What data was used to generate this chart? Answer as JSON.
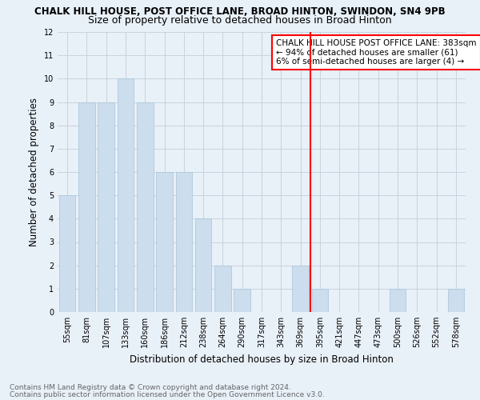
{
  "title": "CHALK HILL HOUSE, POST OFFICE LANE, BROAD HINTON, SWINDON, SN4 9PB",
  "subtitle": "Size of property relative to detached houses in Broad Hinton",
  "xlabel": "Distribution of detached houses by size in Broad Hinton",
  "ylabel": "Number of detached properties",
  "footer1": "Contains HM Land Registry data © Crown copyright and database right 2024.",
  "footer2": "Contains public sector information licensed under the Open Government Licence v3.0.",
  "categories": [
    "55sqm",
    "81sqm",
    "107sqm",
    "133sqm",
    "160sqm",
    "186sqm",
    "212sqm",
    "238sqm",
    "264sqm",
    "290sqm",
    "317sqm",
    "343sqm",
    "369sqm",
    "395sqm",
    "421sqm",
    "447sqm",
    "473sqm",
    "500sqm",
    "526sqm",
    "552sqm",
    "578sqm"
  ],
  "values": [
    5,
    9,
    9,
    10,
    9,
    6,
    6,
    4,
    2,
    1,
    0,
    0,
    2,
    1,
    0,
    0,
    0,
    1,
    0,
    0,
    1
  ],
  "bar_color": "#ccdded",
  "bar_edge_color": "#a8c4d8",
  "grid_color": "#c8d4de",
  "vline_color": "red",
  "annotation_title": "CHALK HILL HOUSE POST OFFICE LANE: 383sqm",
  "annotation_line1": "← 94% of detached houses are smaller (61)",
  "annotation_line2": "6% of semi-detached houses are larger (4) →",
  "ylim": [
    0,
    12
  ],
  "yticks": [
    0,
    1,
    2,
    3,
    4,
    5,
    6,
    7,
    8,
    9,
    10,
    11,
    12
  ],
  "bg_color": "#e8f0f8",
  "plot_bg_color": "#e8f0f8",
  "title_fontsize": 8.5,
  "subtitle_fontsize": 9,
  "xlabel_fontsize": 8.5,
  "ylabel_fontsize": 8.5,
  "tick_fontsize": 7,
  "footer_fontsize": 6.5,
  "annot_fontsize": 7.5
}
